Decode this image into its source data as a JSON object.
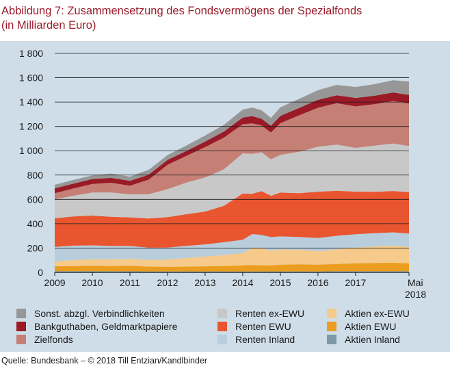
{
  "chart_data": {
    "type": "area",
    "title": "Abbildung 7: Zusammensetzung des Fondsvermögens der Spezialfonds",
    "subtitle": "(in Milliarden Euro)",
    "xlabel": "",
    "ylabel": "",
    "ylim": [
      0,
      1800
    ],
    "yticks": [
      0,
      200,
      400,
      600,
      800,
      1000,
      1200,
      1400,
      1600,
      1800
    ],
    "ytick_labels": [
      "0",
      "200",
      "400",
      "600",
      "800",
      "1 000",
      "1 200",
      "1 400",
      "1 600",
      "1 800"
    ],
    "xlim": [
      2009.0,
      2018.42
    ],
    "xticks": [
      {
        "value": 2009.0,
        "label": "2009"
      },
      {
        "value": 2010.0,
        "label": "2010"
      },
      {
        "value": 2011.0,
        "label": "2011"
      },
      {
        "value": 2012.0,
        "label": "2012"
      },
      {
        "value": 2013.0,
        "label": "2013"
      },
      {
        "value": 2014.0,
        "label": "2014"
      },
      {
        "value": 2015.0,
        "label": "2015"
      },
      {
        "value": 2016.0,
        "label": "2016"
      },
      {
        "value": 2017.0,
        "label": "2017"
      },
      {
        "value": 2018.42,
        "label": "Mai",
        "label2": "2018"
      }
    ],
    "grid": "horizontal",
    "stacked": true,
    "x": [
      2009.0,
      2009.5,
      2010.0,
      2010.5,
      2011.0,
      2011.5,
      2012.0,
      2012.5,
      2013.0,
      2013.5,
      2014.0,
      2014.25,
      2014.5,
      2014.75,
      2015.0,
      2015.5,
      2016.0,
      2016.5,
      2017.0,
      2017.5,
      2018.0,
      2018.42
    ],
    "series": [
      {
        "name": "Aktien Inland",
        "color": "#7b9aa3",
        "values": [
          10,
          10,
          10,
          9,
          9,
          8,
          8,
          8,
          8,
          8,
          8,
          8,
          8,
          8,
          8,
          8,
          8,
          9,
          9,
          9,
          9,
          9
        ]
      },
      {
        "name": "Aktien EWU",
        "color": "#eb9d1f",
        "values": [
          40,
          42,
          45,
          43,
          45,
          40,
          38,
          40,
          42,
          45,
          50,
          52,
          50,
          50,
          55,
          58,
          55,
          60,
          65,
          68,
          70,
          65
        ]
      },
      {
        "name": "Aktien ex-EWU",
        "color": "#f6ca8a",
        "values": [
          40,
          50,
          52,
          55,
          58,
          55,
          60,
          70,
          80,
          90,
          100,
          140,
          140,
          120,
          125,
          120,
          110,
          120,
          130,
          135,
          140,
          135
        ]
      },
      {
        "name": "Renten Inland",
        "color": "#b9cedc",
        "values": [
          120,
          118,
          115,
          110,
          105,
          100,
          98,
          100,
          100,
          105,
          110,
          115,
          110,
          112,
          108,
          105,
          110,
          112,
          110,
          110,
          110,
          110
        ]
      },
      {
        "name": "Renten EWU",
        "color": "#e9552f",
        "values": [
          235,
          240,
          245,
          240,
          235,
          240,
          250,
          260,
          270,
          300,
          380,
          330,
          360,
          340,
          360,
          360,
          380,
          370,
          350,
          340,
          340,
          340
        ]
      },
      {
        "name": "Renten ex-EWU",
        "color": "#c8c8c8",
        "values": [
          155,
          170,
          190,
          200,
          190,
          200,
          230,
          260,
          280,
          300,
          330,
          330,
          320,
          300,
          310,
          340,
          370,
          380,
          360,
          380,
          390,
          380
        ]
      },
      {
        "name": "Zielfonds",
        "color": "#c57f74",
        "values": [
          50,
          60,
          70,
          80,
          70,
          120,
          200,
          220,
          250,
          260,
          240,
          250,
          220,
          220,
          260,
          300,
          320,
          340,
          340,
          340,
          350,
          350
        ]
      },
      {
        "name": "Bankguthaben, Geldmarktpapiere",
        "color": "#9a1a26",
        "values": [
          40,
          40,
          40,
          40,
          40,
          40,
          40,
          40,
          45,
          50,
          55,
          60,
          55,
          55,
          60,
          60,
          65,
          65,
          70,
          70,
          70,
          70
        ]
      },
      {
        "name": "Sonst. abzgl. Verbindlichkeiten",
        "color": "#979797",
        "values": [
          30,
          30,
          30,
          35,
          35,
          40,
          40,
          45,
          50,
          55,
          65,
          70,
          70,
          65,
          70,
          75,
          80,
          85,
          90,
          95,
          100,
          110
        ]
      }
    ],
    "legend": {
      "placement": "bottom",
      "columns": [
        [
          "Sonst. abzgl. Verbindlichkeiten",
          "Bankguthaben, Geldmarktpapiere",
          "Zielfonds"
        ],
        [
          "Renten ex-EWU",
          "Renten EWU",
          "Renten Inland"
        ],
        [
          "Aktien ex-EWU",
          "Aktien EWU",
          "Aktien Inland"
        ]
      ]
    }
  },
  "source": "Quelle: Bundesbank – © 2018 Till Entzian/Kandlbinder"
}
